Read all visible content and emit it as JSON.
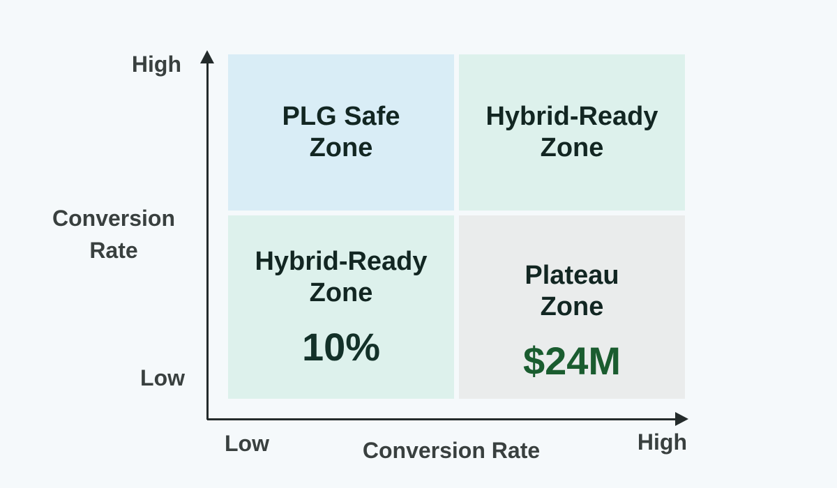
{
  "colors": {
    "page_background": "#f5f9fb",
    "axis": "#242b2b",
    "axis_text": "#39403f",
    "zone_title_text": "#122622",
    "value_teal": "#133129",
    "value_green": "#1a5c2f",
    "quadrant_top_left_bg": "#d9edf6",
    "quadrant_top_right_bg": "#ddf1ec",
    "quadrant_bottom_left_bg": "#ddf1ec",
    "quadrant_bottom_right_bg": "#eaecec"
  },
  "chart": {
    "type": "quadrant-matrix",
    "y_axis": {
      "title_line1": "Conversion",
      "title_line2": "Rate",
      "high_label": "High",
      "low_label": "Low"
    },
    "x_axis": {
      "title": "Conversion Rate",
      "low_label": "Low",
      "high_label": "High"
    },
    "quadrants": [
      {
        "position": "top-left",
        "title_line1": "PLG Safe",
        "title_line2": "Zone",
        "value": "",
        "bg": "#d9edf6"
      },
      {
        "position": "top-right",
        "title_line1": "Hybrid-Ready",
        "title_line2": "Zone",
        "value": "",
        "bg": "#ddf1ec"
      },
      {
        "position": "bottom-left",
        "title_line1": "Hybrid-Ready",
        "title_line2": "Zone",
        "value": "10%",
        "bg": "#ddf1ec"
      },
      {
        "position": "bottom-right",
        "title_line1": "Plateau",
        "title_line2": "Zone",
        "value": "$24M",
        "bg": "#eaecec"
      }
    ]
  }
}
